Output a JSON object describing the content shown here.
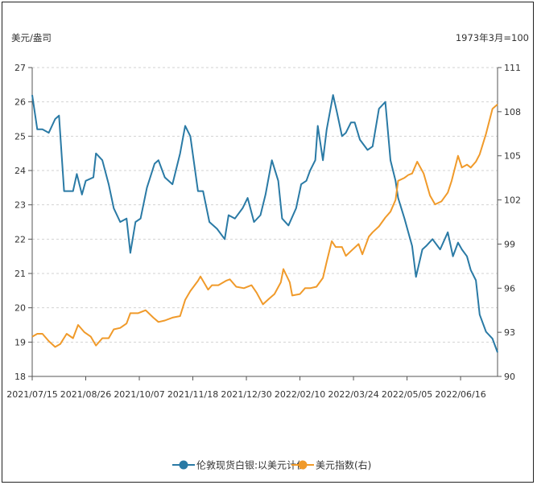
{
  "chart_data": {
    "type": "line",
    "left_unit": "美元/盎司",
    "right_unit": "1973年3月=100",
    "x_ticks": [
      "2021/07/15",
      "2021/08/26",
      "2021/10/07",
      "2021/11/18",
      "2021/12/30",
      "2022/02/10",
      "2022/03/24",
      "2022/05/05",
      "2022/06/16"
    ],
    "y_left": {
      "min": 18,
      "max": 27,
      "ticks": [
        18,
        19,
        20,
        21,
        22,
        23,
        24,
        25,
        26,
        27
      ]
    },
    "y_right": {
      "min": 90,
      "max": 111,
      "ticks": [
        90,
        93,
        96,
        99,
        102,
        105,
        108,
        111
      ]
    },
    "grid": "horizontal-dashed",
    "legend_position": "bottom",
    "series": [
      {
        "name": "伦敦现货白银:以美元计价",
        "axis": "left",
        "color": "#2a7aa5",
        "points": [
          [
            "2021/07/15",
            26.2
          ],
          [
            "2021/07/19",
            25.2
          ],
          [
            "2021/07/23",
            25.2
          ],
          [
            "2021/07/28",
            25.1
          ],
          [
            "2021/08/02",
            25.5
          ],
          [
            "2021/08/05",
            25.6
          ],
          [
            "2021/08/09",
            23.4
          ],
          [
            "2021/08/16",
            23.4
          ],
          [
            "2021/08/19",
            23.9
          ],
          [
            "2021/08/23",
            23.3
          ],
          [
            "2021/08/26",
            23.7
          ],
          [
            "2021/09/01",
            23.8
          ],
          [
            "2021/09/03",
            24.5
          ],
          [
            "2021/09/08",
            24.3
          ],
          [
            "2021/09/13",
            23.6
          ],
          [
            "2021/09/17",
            22.9
          ],
          [
            "2021/09/22",
            22.5
          ],
          [
            "2021/09/27",
            22.6
          ],
          [
            "2021/09/30",
            21.6
          ],
          [
            "2021/10/04",
            22.5
          ],
          [
            "2021/10/08",
            22.6
          ],
          [
            "2021/10/13",
            23.5
          ],
          [
            "2021/10/19",
            24.2
          ],
          [
            "2021/10/22",
            24.3
          ],
          [
            "2021/10/27",
            23.8
          ],
          [
            "2021/11/02",
            23.6
          ],
          [
            "2021/11/08",
            24.5
          ],
          [
            "2021/11/12",
            25.3
          ],
          [
            "2021/11/16",
            25.0
          ],
          [
            "2021/11/22",
            23.4
          ],
          [
            "2021/11/26",
            23.4
          ],
          [
            "2021/12/01",
            22.5
          ],
          [
            "2021/12/07",
            22.3
          ],
          [
            "2021/12/13",
            22.0
          ],
          [
            "2021/12/16",
            22.7
          ],
          [
            "2021/12/21",
            22.6
          ],
          [
            "2021/12/27",
            22.9
          ],
          [
            "2021/12/31",
            23.2
          ],
          [
            "2022/01/05",
            22.5
          ],
          [
            "2022/01/10",
            22.7
          ],
          [
            "2022/01/14",
            23.3
          ],
          [
            "2022/01/19",
            24.3
          ],
          [
            "2022/01/24",
            23.7
          ],
          [
            "2022/01/27",
            22.6
          ],
          [
            "2022/02/01",
            22.4
          ],
          [
            "2022/02/07",
            22.9
          ],
          [
            "2022/02/11",
            23.6
          ],
          [
            "2022/02/15",
            23.7
          ],
          [
            "2022/02/18",
            24.0
          ],
          [
            "2022/02/22",
            24.3
          ],
          [
            "2022/02/24",
            25.3
          ],
          [
            "2022/02/28",
            24.3
          ],
          [
            "2022/03/03",
            25.2
          ],
          [
            "2022/03/08",
            26.2
          ],
          [
            "2022/03/11",
            25.7
          ],
          [
            "2022/03/15",
            25.0
          ],
          [
            "2022/03/18",
            25.1
          ],
          [
            "2022/03/22",
            25.4
          ],
          [
            "2022/03/25",
            25.4
          ],
          [
            "2022/03/29",
            24.9
          ],
          [
            "2022/04/04",
            24.6
          ],
          [
            "2022/04/08",
            24.7
          ],
          [
            "2022/04/13",
            25.8
          ],
          [
            "2022/04/18",
            26.0
          ],
          [
            "2022/04/22",
            24.3
          ],
          [
            "2022/04/26",
            23.7
          ],
          [
            "2022/04/28",
            23.2
          ],
          [
            "2022/05/03",
            22.6
          ],
          [
            "2022/05/09",
            21.8
          ],
          [
            "2022/05/12",
            20.9
          ],
          [
            "2022/05/17",
            21.7
          ],
          [
            "2022/05/20",
            21.8
          ],
          [
            "2022/05/25",
            22.0
          ],
          [
            "2022/05/31",
            21.7
          ],
          [
            "2022/06/06",
            22.2
          ],
          [
            "2022/06/10",
            21.5
          ],
          [
            "2022/06/14",
            21.9
          ],
          [
            "2022/06/17",
            21.7
          ],
          [
            "2022/06/21",
            21.5
          ],
          [
            "2022/06/24",
            21.1
          ],
          [
            "2022/06/28",
            20.8
          ],
          [
            "2022/07/01",
            19.8
          ],
          [
            "2022/07/06",
            19.3
          ],
          [
            "2022/07/11",
            19.1
          ],
          [
            "2022/07/15",
            18.7
          ]
        ]
      },
      {
        "name": "美元指数(右)",
        "axis": "right",
        "color": "#f09a2a",
        "points": [
          [
            "2021/07/15",
            92.7
          ],
          [
            "2021/07/19",
            92.9
          ],
          [
            "2021/07/23",
            92.9
          ],
          [
            "2021/07/28",
            92.4
          ],
          [
            "2021/08/02",
            92.0
          ],
          [
            "2021/08/06",
            92.2
          ],
          [
            "2021/08/11",
            92.9
          ],
          [
            "2021/08/16",
            92.6
          ],
          [
            "2021/08/20",
            93.5
          ],
          [
            "2021/08/25",
            93.0
          ],
          [
            "2021/08/30",
            92.7
          ],
          [
            "2021/09/03",
            92.1
          ],
          [
            "2021/09/08",
            92.6
          ],
          [
            "2021/09/13",
            92.6
          ],
          [
            "2021/09/17",
            93.2
          ],
          [
            "2021/09/22",
            93.3
          ],
          [
            "2021/09/27",
            93.6
          ],
          [
            "2021/09/30",
            94.3
          ],
          [
            "2021/10/06",
            94.3
          ],
          [
            "2021/10/12",
            94.5
          ],
          [
            "2021/10/18",
            94.0
          ],
          [
            "2021/10/22",
            93.7
          ],
          [
            "2021/10/27",
            93.8
          ],
          [
            "2021/11/02",
            94.0
          ],
          [
            "2021/11/08",
            94.1
          ],
          [
            "2021/11/12",
            95.2
          ],
          [
            "2021/11/16",
            95.8
          ],
          [
            "2021/11/22",
            96.5
          ],
          [
            "2021/11/24",
            96.8
          ],
          [
            "2021/11/30",
            95.9
          ],
          [
            "2021/12/03",
            96.2
          ],
          [
            "2021/12/08",
            96.2
          ],
          [
            "2021/12/14",
            96.5
          ],
          [
            "2021/12/17",
            96.6
          ],
          [
            "2021/12/22",
            96.1
          ],
          [
            "2021/12/28",
            96.0
          ],
          [
            "2022/01/03",
            96.2
          ],
          [
            "2022/01/07",
            95.7
          ],
          [
            "2022/01/12",
            94.9
          ],
          [
            "2022/01/17",
            95.3
          ],
          [
            "2022/01/21",
            95.6
          ],
          [
            "2022/01/26",
            96.4
          ],
          [
            "2022/01/28",
            97.3
          ],
          [
            "2022/02/02",
            96.4
          ],
          [
            "2022/02/04",
            95.5
          ],
          [
            "2022/02/10",
            95.6
          ],
          [
            "2022/02/14",
            96.0
          ],
          [
            "2022/02/18",
            96.0
          ],
          [
            "2022/02/23",
            96.1
          ],
          [
            "2022/02/28",
            96.7
          ],
          [
            "2022/03/03",
            97.8
          ],
          [
            "2022/03/07",
            99.2
          ],
          [
            "2022/03/10",
            98.8
          ],
          [
            "2022/03/15",
            98.8
          ],
          [
            "2022/03/18",
            98.2
          ],
          [
            "2022/03/23",
            98.6
          ],
          [
            "2022/03/28",
            99.0
          ],
          [
            "2022/03/31",
            98.3
          ],
          [
            "2022/04/05",
            99.5
          ],
          [
            "2022/04/08",
            99.8
          ],
          [
            "2022/04/13",
            100.2
          ],
          [
            "2022/04/18",
            100.8
          ],
          [
            "2022/04/22",
            101.2
          ],
          [
            "2022/04/26",
            102.0
          ],
          [
            "2022/04/28",
            103.3
          ],
          [
            "2022/05/03",
            103.5
          ],
          [
            "2022/05/06",
            103.7
          ],
          [
            "2022/05/09",
            103.8
          ],
          [
            "2022/05/13",
            104.6
          ],
          [
            "2022/05/18",
            103.8
          ],
          [
            "2022/05/23",
            102.3
          ],
          [
            "2022/05/27",
            101.7
          ],
          [
            "2022/06/01",
            101.9
          ],
          [
            "2022/06/06",
            102.5
          ],
          [
            "2022/06/09",
            103.3
          ],
          [
            "2022/06/14",
            105.0
          ],
          [
            "2022/06/17",
            104.2
          ],
          [
            "2022/06/21",
            104.4
          ],
          [
            "2022/06/24",
            104.2
          ],
          [
            "2022/06/28",
            104.6
          ],
          [
            "2022/07/01",
            105.1
          ],
          [
            "2022/07/06",
            106.5
          ],
          [
            "2022/07/11",
            108.2
          ],
          [
            "2022/07/15",
            108.5
          ]
        ]
      }
    ]
  }
}
